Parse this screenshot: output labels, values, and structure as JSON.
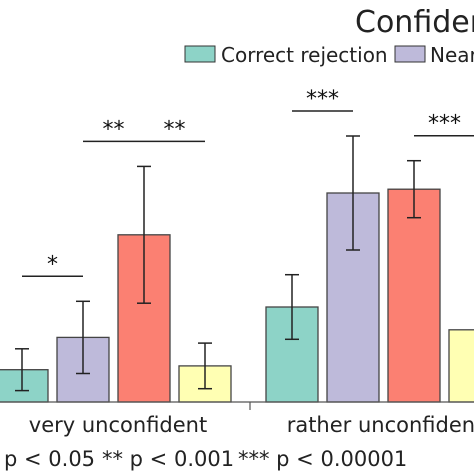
{
  "chart_data": {
    "type": "bar",
    "title": "Confiden",
    "legend": {
      "position": "top-right",
      "entries": [
        {
          "name": "Correct rejection",
          "color": "#8dd3c7"
        },
        {
          "name": "Near",
          "color": "#bebada"
        }
      ]
    },
    "categories": [
      "very unconfident",
      "rather unconfident"
    ],
    "series": [
      {
        "name": "Correct rejection",
        "color": "#8dd3c7",
        "values": [
          0.17,
          0.5
        ],
        "errors": [
          0.11,
          0.17
        ]
      },
      {
        "name": "Near",
        "color": "#bebada",
        "values": [
          0.34,
          1.1
        ],
        "errors": [
          0.19,
          0.3
        ]
      },
      {
        "name": "",
        "color": "#fb8072",
        "values": [
          0.88,
          1.12
        ],
        "errors": [
          0.36,
          0.15
        ]
      },
      {
        "name": "",
        "color": "#ffffb3",
        "values": [
          0.19,
          0.38
        ],
        "errors": [
          0.12,
          0.0
        ]
      }
    ],
    "significance": [
      {
        "label": "*",
        "category": 0,
        "from": 0,
        "to": 1
      },
      {
        "label": "**",
        "category": 0,
        "from": 1,
        "to": 2
      },
      {
        "label": "**",
        "category": 0,
        "from": 2,
        "to": 3
      },
      {
        "label": "***",
        "category": 1,
        "from": 0,
        "to": 1
      },
      {
        "label": "***",
        "category": 1,
        "from": 2,
        "to": 3
      }
    ],
    "footnote": [
      "p < 0.05",
      "** p < 0.001",
      "*** p < 0.00001"
    ]
  }
}
